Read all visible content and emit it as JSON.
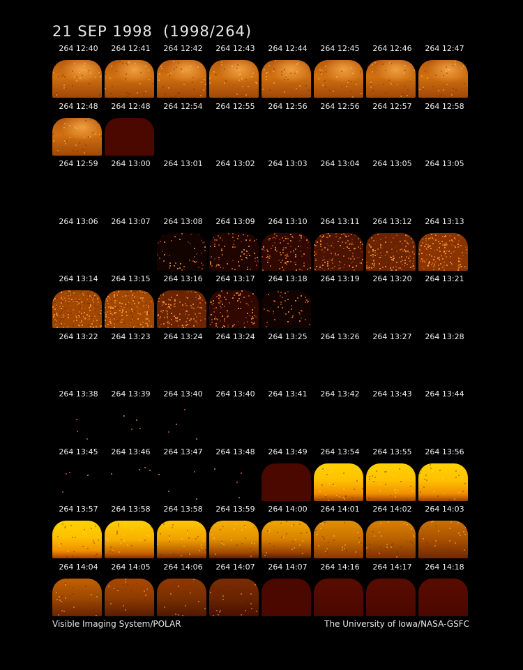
{
  "title": "21 SEP 1998  (1998/264)",
  "footer": {
    "left": "Visible Imaging System/POLAR",
    "right": "The University of Iowa/NASA-GSFC"
  },
  "colors": {
    "bright": "#ffd000",
    "medium": "#e07800",
    "dim": "#8a2800",
    "dark": "#4a0800"
  },
  "rows": [
    {
      "labels": [
        "264 12:40",
        "264 12:41",
        "264 12:42",
        "264 12:43",
        "264 12:44",
        "264 12:45",
        "264 12:46",
        "264 12:47"
      ],
      "frames": [
        "aurora",
        "aurora",
        "aurora",
        "aurora",
        "aurora",
        "aurora",
        "aurora",
        "aurora"
      ]
    },
    {
      "labels": [
        "264 12:48",
        "264 12:48",
        "264 12:54",
        "264 12:55",
        "264 12:56",
        "264 12:56",
        "264 12:57",
        "264 12:58"
      ],
      "frames": [
        "aurora",
        "dark",
        "empty",
        "empty",
        "empty",
        "empty",
        "empty",
        "empty"
      ]
    },
    {
      "labels": [
        "264 12:59",
        "264 13:00",
        "264 13:01",
        "264 13:02",
        "264 13:03",
        "264 13:04",
        "264 13:05",
        "264 13:05"
      ],
      "frames": [
        "empty",
        "empty",
        "empty",
        "empty",
        "empty",
        "empty",
        "empty",
        "empty"
      ]
    },
    {
      "labels": [
        "264 13:06",
        "264 13:07",
        "264 13:08",
        "264 13:09",
        "264 13:10",
        "264 13:11",
        "264 13:12",
        "264 13:13"
      ],
      "frames": [
        "empty",
        "empty",
        "noise1",
        "noise2",
        "noise3",
        "noise4",
        "noise5",
        "noise6"
      ]
    },
    {
      "labels": [
        "264 13:14",
        "264 13:15",
        "264 13:16",
        "264 13:17",
        "264 13:18",
        "264 13:19",
        "264 13:20",
        "264 13:21"
      ],
      "frames": [
        "noise7",
        "noise7",
        "noise5",
        "noise3",
        "noise1",
        "empty",
        "empty",
        "empty"
      ]
    },
    {
      "labels": [
        "264 13:22",
        "264 13:23",
        "264 13:24",
        "264 13:24",
        "264 13:25",
        "264 13:26",
        "264 13:27",
        "264 13:28"
      ],
      "frames": [
        "empty",
        "empty",
        "empty",
        "empty",
        "empty",
        "empty",
        "empty",
        "empty"
      ]
    },
    {
      "labels": [
        "264 13:38",
        "264 13:39",
        "264 13:40",
        "264 13:40",
        "264 13:41",
        "264 13:42",
        "264 13:43",
        "264 13:44"
      ],
      "frames": [
        "specks",
        "specks",
        "specks",
        "empty",
        "empty",
        "empty",
        "empty",
        "empty"
      ]
    },
    {
      "labels": [
        "264 13:45",
        "264 13:46",
        "264 13:47",
        "264 13:48",
        "264 13:49",
        "264 13:54",
        "264 13:55",
        "264 13:56"
      ],
      "frames": [
        "specks",
        "specks",
        "specks",
        "specks",
        "dark",
        "bright1",
        "bright1",
        "bright1"
      ]
    },
    {
      "labels": [
        "264 13:57",
        "264 13:58",
        "264 13:58",
        "264 13:59",
        "264 14:00",
        "264 14:01",
        "264 14:02",
        "264 14:03"
      ],
      "frames": [
        "bright1",
        "bright2",
        "bright3",
        "bright4",
        "bright5",
        "fade1",
        "fade2",
        "fade3"
      ]
    },
    {
      "labels": [
        "264 14:04",
        "264 14:05",
        "264 14:06",
        "264 14:07",
        "264 14:07",
        "264 14:16",
        "264 14:17",
        "264 14:18"
      ],
      "frames": [
        "fade4",
        "fade5",
        "fade6",
        "fade7",
        "dark",
        "dark2",
        "dark2",
        "dark2"
      ]
    }
  ]
}
